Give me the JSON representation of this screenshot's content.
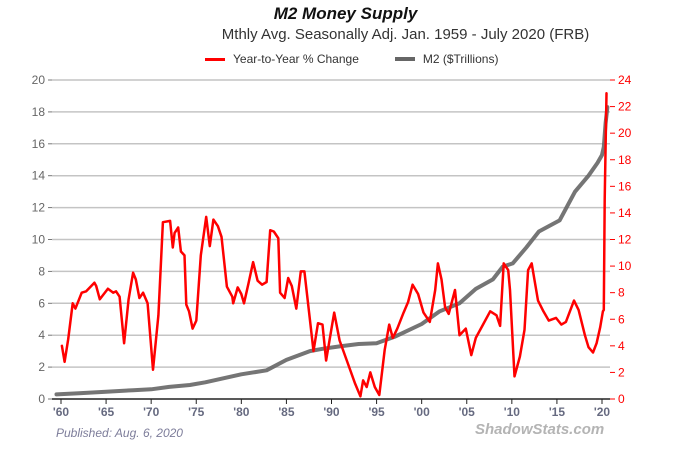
{
  "chart_data": {
    "type": "line",
    "title": "M2 Money Supply",
    "subtitle": "Mthly Avg. Seasonally Adj. Jan. 1959 - July 2020  (FRB)",
    "xlabel": "",
    "ylabel_left": "",
    "ylabel_right": "",
    "xlim": [
      1959.5,
      2020.7
    ],
    "ylim_left": [
      0,
      20
    ],
    "ylim_right": [
      0,
      24
    ],
    "grid": true,
    "legend_position": "top-center",
    "x_ticks": [
      1960,
      1965,
      1970,
      1975,
      1980,
      1985,
      1990,
      1995,
      2000,
      2005,
      2010,
      2015,
      2020
    ],
    "x_tick_labels": [
      "'60",
      "'65",
      "'70",
      "'75",
      "'80",
      "'85",
      "'90",
      "'95",
      "'00",
      "'05",
      "'10",
      "'15",
      "'20"
    ],
    "y_left_ticks": [
      0,
      2,
      4,
      6,
      8,
      10,
      12,
      14,
      16,
      18,
      20
    ],
    "y_right_ticks": [
      0,
      2,
      4,
      6,
      8,
      10,
      12,
      14,
      16,
      18,
      20,
      22,
      24
    ],
    "series": [
      {
        "name": "Year-to-Year % Change",
        "axis": "right",
        "color": "#ff0000",
        "x": [
          1960.1,
          1960.4,
          1960.8,
          1961.3,
          1961.6,
          1962.3,
          1962.8,
          1963.7,
          1963.9,
          1964.3,
          1965.2,
          1965.8,
          1966.1,
          1966.5,
          1967.0,
          1967.5,
          1968.0,
          1968.3,
          1968.7,
          1969.1,
          1969.6,
          1970.2,
          1970.8,
          1971.3,
          1972.1,
          1972.4,
          1972.6,
          1973.0,
          1973.3,
          1973.7,
          1973.9,
          1974.2,
          1974.6,
          1975.0,
          1975.5,
          1976.1,
          1976.5,
          1976.9,
          1977.4,
          1977.8,
          1978.4,
          1979.0,
          1979.1,
          1979.6,
          1980.0,
          1980.3,
          1980.8,
          1981.3,
          1981.8,
          1982.3,
          1982.8,
          1983.2,
          1983.6,
          1984.1,
          1984.3,
          1984.8,
          1985.2,
          1985.6,
          1986.1,
          1986.6,
          1987.0,
          1988.0,
          1988.5,
          1989.0,
          1989.4,
          1990.3,
          1990.9,
          1991.7,
          1992.6,
          1993.2,
          1993.5,
          1993.9,
          1994.3,
          1994.8,
          1995.3,
          1995.9,
          1996.4,
          1996.8,
          1997.3,
          1998.0,
          1998.5,
          1999.0,
          1999.6,
          2000.2,
          2000.9,
          2001.5,
          2001.8,
          2002.2,
          2002.6,
          2003.0,
          2003.7,
          2004.2,
          2004.9,
          2005.5,
          2006.0,
          2006.8,
          2007.6,
          2008.3,
          2008.7,
          2009.1,
          2009.6,
          2009.8,
          2010.3,
          2010.9,
          2011.4,
          2011.8,
          2012.2,
          2012.5,
          2012.9,
          2013.5,
          2014.1,
          2014.9,
          2015.5,
          2016.0,
          2016.9,
          2017.4,
          2018.1,
          2018.5,
          2019.0,
          2019.4,
          2019.8,
          2020.1,
          2020.2,
          2020.3,
          2020.5
        ],
        "values": [
          4.0,
          2.8,
          4.5,
          7.2,
          6.8,
          8.0,
          8.1,
          8.75,
          8.5,
          7.5,
          8.3,
          8.0,
          8.1,
          7.7,
          4.2,
          7.5,
          9.5,
          9.0,
          7.6,
          8.0,
          7.2,
          2.2,
          6.3,
          13.3,
          13.4,
          11.4,
          12.5,
          12.9,
          11.1,
          10.8,
          7.1,
          6.6,
          5.3,
          5.9,
          10.8,
          13.7,
          11.5,
          13.5,
          13.0,
          12.2,
          8.45,
          7.7,
          7.2,
          8.4,
          7.9,
          7.2,
          8.7,
          10.3,
          8.9,
          8.6,
          8.8,
          12.7,
          12.6,
          12.1,
          8.0,
          7.6,
          9.1,
          8.5,
          6.8,
          9.6,
          9.6,
          3.6,
          5.7,
          5.6,
          2.9,
          6.5,
          4.4,
          2.9,
          1.2,
          0.2,
          1.4,
          0.9,
          2.0,
          0.9,
          0.3,
          3.7,
          5.6,
          4.6,
          5.3,
          6.5,
          7.3,
          8.6,
          7.9,
          6.5,
          5.8,
          8.2,
          10.2,
          9.0,
          6.9,
          6.4,
          8.2,
          4.8,
          5.3,
          3.3,
          4.6,
          5.6,
          6.6,
          6.3,
          5.5,
          10.2,
          9.7,
          8.2,
          1.7,
          3.2,
          5.2,
          9.7,
          10.2,
          9.0,
          7.4,
          6.6,
          5.9,
          6.1,
          5.6,
          5.8,
          7.4,
          6.7,
          4.8,
          3.9,
          3.5,
          4.2,
          5.4,
          6.6,
          6.7,
          15.0,
          23.0
        ]
      },
      {
        "name": "M2 ($Trillions)",
        "axis": "left",
        "color": "#666666",
        "x": [
          1959.5,
          1962,
          1965,
          1968,
          1970,
          1972,
          1974.3,
          1976,
          1978,
          1980,
          1982.8,
          1985,
          1987.6,
          1989,
          1990.9,
          1993,
          1995,
          1997,
          2000,
          2002,
          2004.2,
          2006,
          2007.9,
          2009,
          2010.1,
          2011.6,
          2013,
          2015.3,
          2017,
          2018.5,
          2019.5,
          2020.0,
          2020.2,
          2020.4,
          2020.6
        ],
        "values": [
          0.29,
          0.36,
          0.46,
          0.55,
          0.61,
          0.76,
          0.88,
          1.05,
          1.3,
          1.55,
          1.8,
          2.45,
          3.0,
          3.15,
          3.3,
          3.45,
          3.5,
          3.9,
          4.7,
          5.5,
          6.0,
          6.9,
          7.5,
          8.3,
          8.5,
          9.5,
          10.5,
          11.2,
          13.0,
          14.0,
          14.8,
          15.3,
          15.8,
          17.3,
          18.3
        ]
      }
    ]
  },
  "footer": {
    "published": "Published: Aug. 6, 2020",
    "watermark": "ShadowStats.com"
  }
}
